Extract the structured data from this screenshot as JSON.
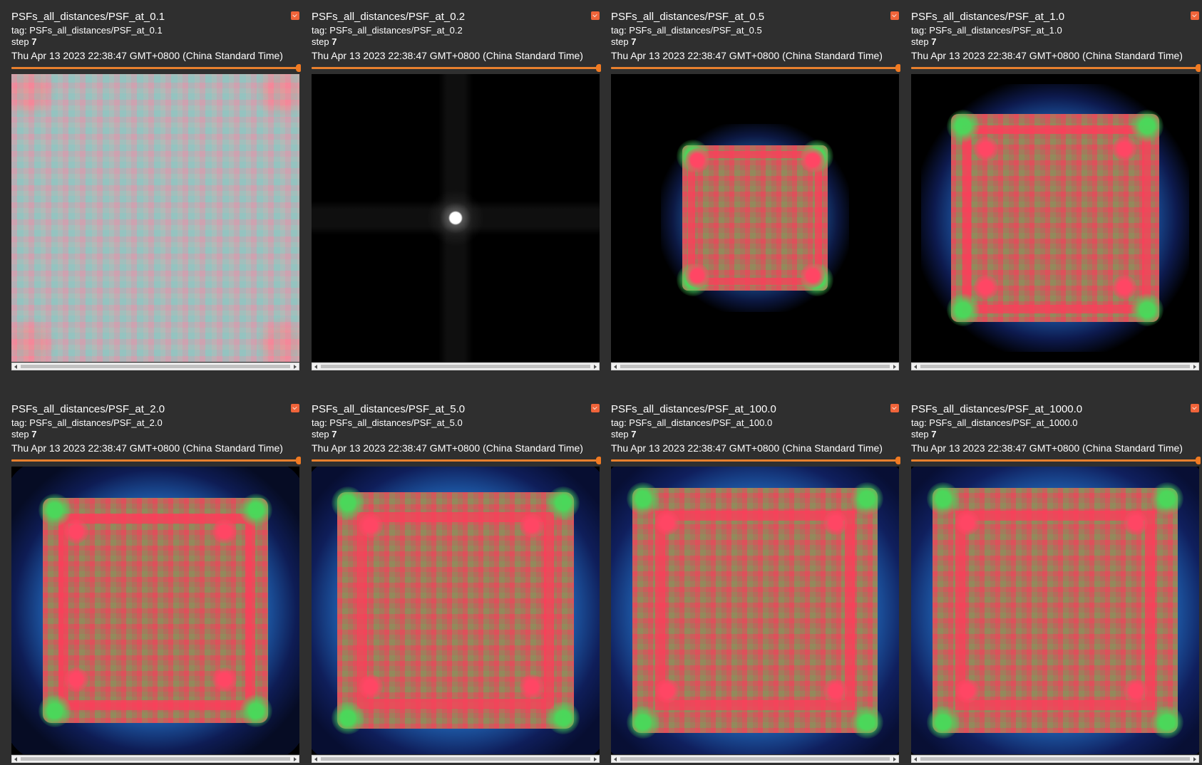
{
  "cards": [
    {
      "title": "PSFs_all_distances/PSF_at_0.1",
      "tag": "tag: PSFs_all_distances/PSF_at_0.1",
      "step_label": "step",
      "step_value": "7",
      "time": "Thu Apr 13 2023 22:38:47 GMT+0800 (China Standard Time)"
    },
    {
      "title": "PSFs_all_distances/PSF_at_0.2",
      "tag": "tag: PSFs_all_distances/PSF_at_0.2",
      "step_label": "step",
      "step_value": "7",
      "time": "Thu Apr 13 2023 22:38:47 GMT+0800 (China Standard Time)"
    },
    {
      "title": "PSFs_all_distances/PSF_at_0.5",
      "tag": "tag: PSFs_all_distances/PSF_at_0.5",
      "step_label": "step",
      "step_value": "7",
      "time": "Thu Apr 13 2023 22:38:47 GMT+0800 (China Standard Time)"
    },
    {
      "title": "PSFs_all_distances/PSF_at_1.0",
      "tag": "tag: PSFs_all_distances/PSF_at_1.0",
      "step_label": "step",
      "step_value": "7",
      "time": "Thu Apr 13 2023 22:38:47 GMT+0800 (China Standard Time)"
    },
    {
      "title": "PSFs_all_distances/PSF_at_2.0",
      "tag": "tag: PSFs_all_distances/PSF_at_2.0",
      "step_label": "step",
      "step_value": "7",
      "time": "Thu Apr 13 2023 22:38:47 GMT+0800 (China Standard Time)"
    },
    {
      "title": "PSFs_all_distances/PSF_at_5.0",
      "tag": "tag: PSFs_all_distances/PSF_at_5.0",
      "step_label": "step",
      "step_value": "7",
      "time": "Thu Apr 13 2023 22:38:47 GMT+0800 (China Standard Time)"
    },
    {
      "title": "PSFs_all_distances/PSF_at_100.0",
      "tag": "tag: PSFs_all_distances/PSF_at_100.0",
      "step_label": "step",
      "step_value": "7",
      "time": "Thu Apr 13 2023 22:38:47 GMT+0800 (China Standard Time)"
    },
    {
      "title": "PSFs_all_distances/PSF_at_1000.0",
      "tag": "tag: PSFs_all_distances/PSF_at_1000.0",
      "step_label": "step",
      "step_value": "7",
      "time": "Thu Apr 13 2023 22:38:47 GMT+0800 (China Standard Time)"
    }
  ],
  "icons": {
    "pin": "pin-toggle-icon",
    "scroll_left": "scroll-left-arrow-icon",
    "scroll_right": "scroll-right-arrow-icon"
  },
  "colors": {
    "background": "#2f2f2f",
    "accent": "#f07a22",
    "pin": "#f0643a"
  },
  "step_slider_position": 1.0
}
